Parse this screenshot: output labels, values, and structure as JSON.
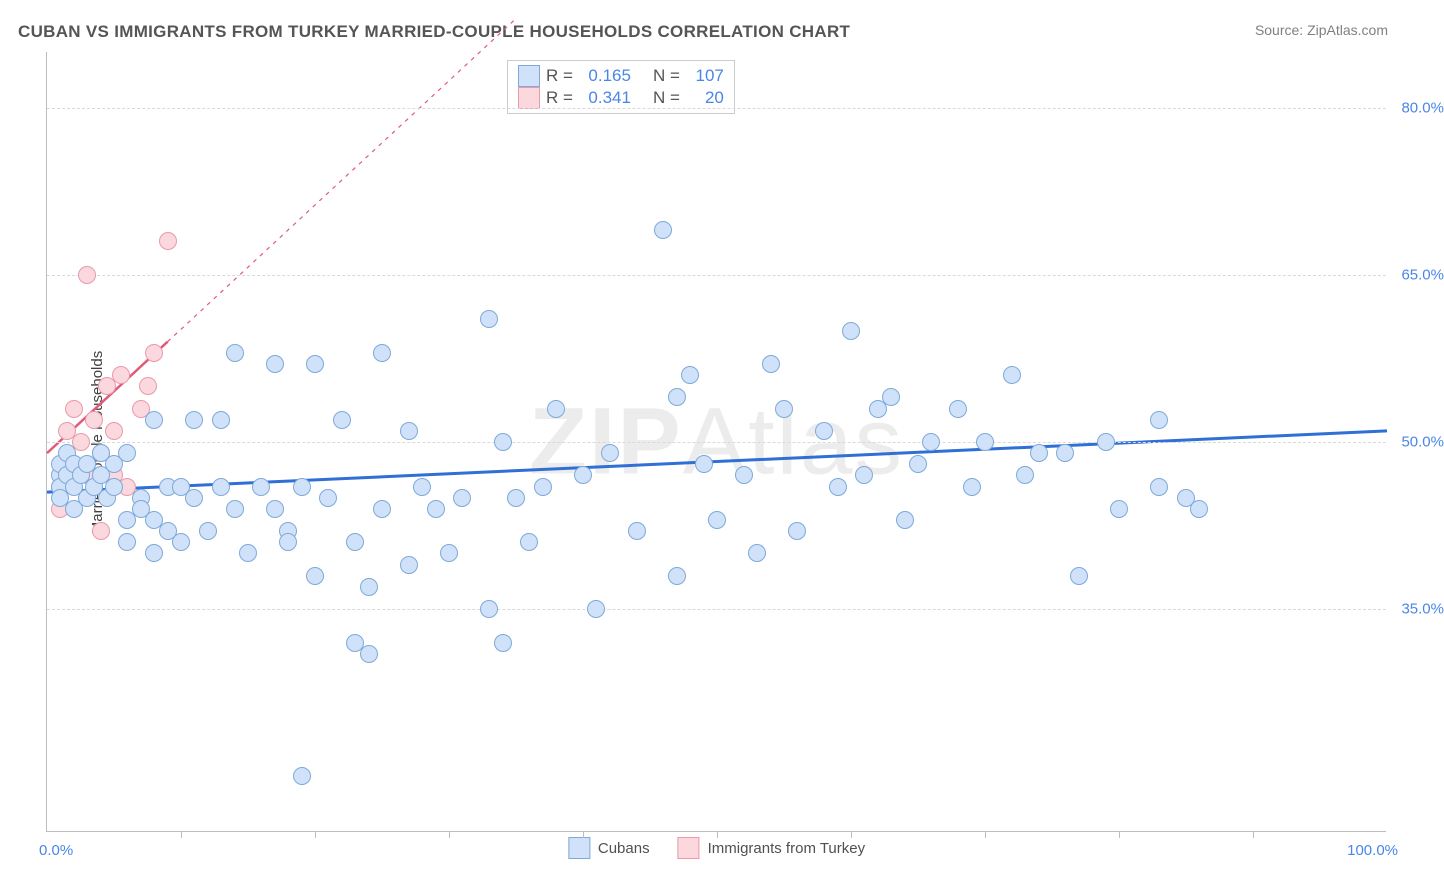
{
  "title": "CUBAN VS IMMIGRANTS FROM TURKEY MARRIED-COUPLE HOUSEHOLDS CORRELATION CHART",
  "source": "Source: ZipAtlas.com",
  "y_axis_title": "Married-couple Households",
  "watermark_bold": "ZIP",
  "watermark_rest": "Atlas",
  "chart": {
    "type": "scatter",
    "background_color": "#ffffff",
    "grid_color": "#d9d9d9",
    "axis_color": "#bdbdbd",
    "xlim": [
      0,
      100
    ],
    "ylim": [
      15,
      85
    ],
    "x_ticks_minor": [
      10,
      20,
      30,
      40,
      50,
      60,
      70,
      80,
      90
    ],
    "x_tick_labels": {
      "0": "0.0%",
      "100": "100.0%"
    },
    "y_ticks": [
      35,
      50,
      65,
      80
    ],
    "y_tick_labels": {
      "35": "35.0%",
      "50": "50.0%",
      "65": "65.0%",
      "80": "80.0%"
    },
    "tick_label_color": "#4a86e8",
    "tick_label_fontsize": 15,
    "marker_radius": 9,
    "marker_stroke_width": 1,
    "series": [
      {
        "name": "Cubans",
        "fill": "#cfe2f9",
        "stroke": "#7fa9d8",
        "R": "0.165",
        "N": "107",
        "trend": {
          "x1": 0,
          "y1": 45.5,
          "x2": 100,
          "y2": 51.0,
          "color": "#2f6fd6",
          "width": 3,
          "dash": "none"
        },
        "points": [
          [
            1,
            47
          ],
          [
            1,
            48
          ],
          [
            1,
            46
          ],
          [
            1,
            45
          ],
          [
            1.5,
            49
          ],
          [
            1.5,
            47
          ],
          [
            2,
            48
          ],
          [
            2,
            46
          ],
          [
            2,
            44
          ],
          [
            2.5,
            47
          ],
          [
            3,
            45
          ],
          [
            3,
            48
          ],
          [
            3.5,
            46
          ],
          [
            4,
            47
          ],
          [
            4,
            49
          ],
          [
            4.5,
            45
          ],
          [
            5,
            48
          ],
          [
            5,
            46
          ],
          [
            6,
            43
          ],
          [
            6,
            49
          ],
          [
            6,
            41
          ],
          [
            7,
            45
          ],
          [
            7,
            44
          ],
          [
            8,
            43
          ],
          [
            8,
            40
          ],
          [
            8,
            52
          ],
          [
            9,
            46
          ],
          [
            9,
            42
          ],
          [
            10,
            41
          ],
          [
            10,
            46
          ],
          [
            11,
            52
          ],
          [
            11,
            45
          ],
          [
            12,
            42
          ],
          [
            13,
            52
          ],
          [
            13,
            46
          ],
          [
            14,
            58
          ],
          [
            14,
            44
          ],
          [
            15,
            40
          ],
          [
            16,
            46
          ],
          [
            17,
            57
          ],
          [
            17,
            44
          ],
          [
            18,
            42
          ],
          [
            18,
            41
          ],
          [
            19,
            20
          ],
          [
            19,
            46
          ],
          [
            20,
            57
          ],
          [
            20,
            38
          ],
          [
            21,
            45
          ],
          [
            22,
            52
          ],
          [
            23,
            32
          ],
          [
            23,
            41
          ],
          [
            24,
            31
          ],
          [
            24,
            37
          ],
          [
            25,
            58
          ],
          [
            25,
            44
          ],
          [
            27,
            39
          ],
          [
            27,
            51
          ],
          [
            28,
            46
          ],
          [
            29,
            44
          ],
          [
            30,
            40
          ],
          [
            31,
            45
          ],
          [
            33,
            35
          ],
          [
            33,
            61
          ],
          [
            34,
            32
          ],
          [
            34,
            50
          ],
          [
            35,
            45
          ],
          [
            36,
            41
          ],
          [
            37,
            46
          ],
          [
            38,
            53
          ],
          [
            40,
            47
          ],
          [
            41,
            35
          ],
          [
            42,
            49
          ],
          [
            44,
            42
          ],
          [
            46,
            69
          ],
          [
            47,
            54
          ],
          [
            47,
            38
          ],
          [
            48,
            56
          ],
          [
            49,
            48
          ],
          [
            50,
            43
          ],
          [
            52,
            47
          ],
          [
            53,
            40
          ],
          [
            54,
            57
          ],
          [
            55,
            53
          ],
          [
            56,
            42
          ],
          [
            58,
            51
          ],
          [
            59,
            46
          ],
          [
            60,
            60
          ],
          [
            61,
            47
          ],
          [
            62,
            53
          ],
          [
            63,
            54
          ],
          [
            64,
            43
          ],
          [
            65,
            48
          ],
          [
            66,
            50
          ],
          [
            68,
            53
          ],
          [
            69,
            46
          ],
          [
            70,
            50
          ],
          [
            72,
            56
          ],
          [
            73,
            47
          ],
          [
            74,
            49
          ],
          [
            76,
            49
          ],
          [
            77,
            38
          ],
          [
            79,
            50
          ],
          [
            80,
            44
          ],
          [
            83,
            46
          ],
          [
            85,
            45
          ],
          [
            83,
            52
          ],
          [
            86,
            44
          ]
        ]
      },
      {
        "name": "Immigrants from Turkey",
        "fill": "#fbd7de",
        "stroke": "#e99aab",
        "R": "0.341",
        "N": "20",
        "trend": {
          "x1": 0,
          "y1": 49,
          "x2": 9,
          "y2": 59,
          "color": "#e05b7a",
          "width": 2.5,
          "dash": "none",
          "ext_x2": 35,
          "ext_y2": 88,
          "ext_dash": "4,5"
        },
        "points": [
          [
            1,
            46
          ],
          [
            1,
            44
          ],
          [
            1.5,
            51
          ],
          [
            2,
            48
          ],
          [
            2,
            53
          ],
          [
            2.5,
            50
          ],
          [
            3,
            47
          ],
          [
            3,
            65
          ],
          [
            3.5,
            52
          ],
          [
            4,
            42
          ],
          [
            4,
            49
          ],
          [
            4.5,
            55
          ],
          [
            5,
            51
          ],
          [
            5,
            47
          ],
          [
            5.5,
            56
          ],
          [
            6,
            46
          ],
          [
            7,
            53
          ],
          [
            7.5,
            55
          ],
          [
            8,
            58
          ],
          [
            9,
            68
          ]
        ]
      }
    ],
    "legend": {
      "box_border": "#cccccc",
      "label_R": "R =",
      "label_N": "N =",
      "value_color": "#4a86e8"
    },
    "bottom_legend": {
      "items": [
        "Cubans",
        "Immigrants from Turkey"
      ]
    }
  }
}
